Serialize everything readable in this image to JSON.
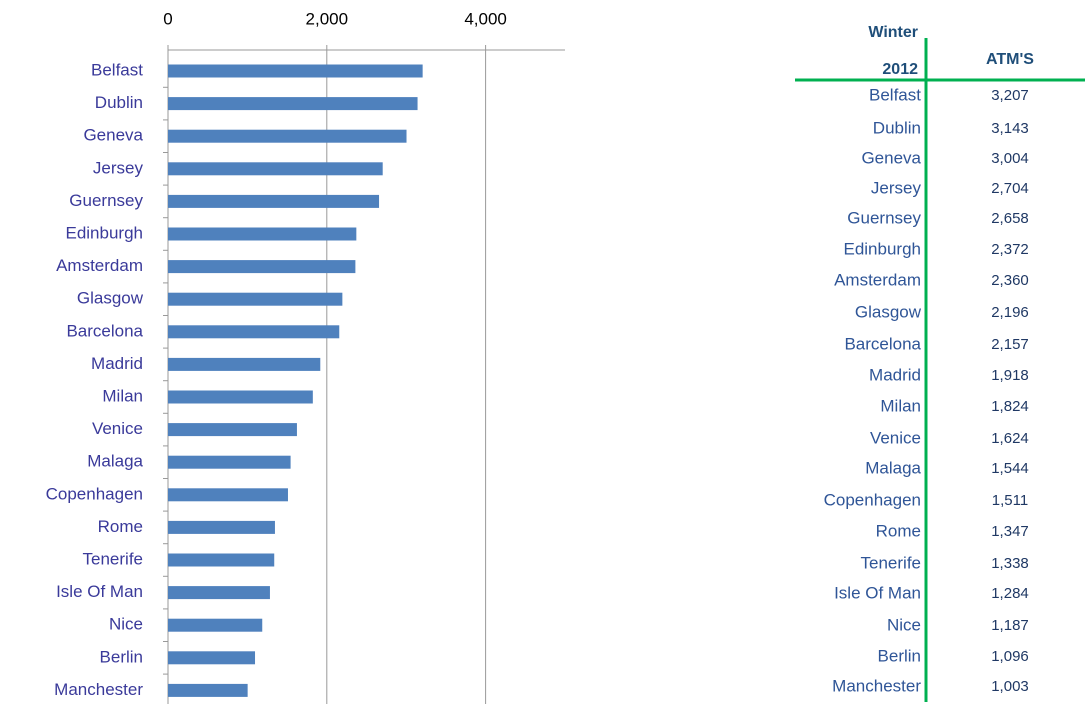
{
  "chart_data": {
    "type": "bar",
    "orientation": "horizontal",
    "categories": [
      "Belfast",
      "Dublin",
      "Geneva",
      "Jersey",
      "Guernsey",
      "Edinburgh",
      "Amsterdam",
      "Glasgow",
      "Barcelona",
      "Madrid",
      "Milan",
      "Venice",
      "Malaga",
      "Copenhagen",
      "Rome",
      "Tenerife",
      "Isle Of Man",
      "Nice",
      "Berlin",
      "Manchester"
    ],
    "values": [
      3207,
      3143,
      3004,
      2704,
      2658,
      2372,
      2360,
      2196,
      2157,
      1918,
      1824,
      1624,
      1544,
      1511,
      1347,
      1338,
      1284,
      1187,
      1096,
      1003
    ],
    "color": "#4f81bd",
    "xlim": [
      0,
      5000
    ],
    "xticks": [
      0,
      {
        "value": 2000,
        "label": "2,000"
      },
      {
        "value": 4000,
        "label": "4,000"
      }
    ],
    "grid": true
  },
  "table": {
    "headers": [
      [
        "Winter",
        "2012"
      ],
      "ATM'S"
    ],
    "rows": [
      [
        "Belfast",
        "3,207"
      ],
      [
        "Dublin",
        "3,143"
      ],
      [
        "Geneva",
        "3,004"
      ],
      [
        "Jersey",
        "2,704"
      ],
      [
        "Guernsey",
        "2,658"
      ],
      [
        "Edinburgh",
        "2,372"
      ],
      [
        "Amsterdam",
        "2,360"
      ],
      [
        "Glasgow",
        "2,196"
      ],
      [
        "Barcelona",
        "2,157"
      ],
      [
        "Madrid",
        "1,918"
      ],
      [
        "Milan",
        "1,824"
      ],
      [
        "Venice",
        "1,624"
      ],
      [
        "Malaga",
        "1,544"
      ],
      [
        "Copenhagen",
        "1,511"
      ],
      [
        "Rome",
        "1,347"
      ],
      [
        "Tenerife",
        "1,338"
      ],
      [
        "Isle Of Man",
        "1,284"
      ],
      [
        "Nice",
        "1,187"
      ],
      [
        "Berlin",
        "1,096"
      ],
      [
        "Manchester",
        "1,003"
      ]
    ]
  }
}
